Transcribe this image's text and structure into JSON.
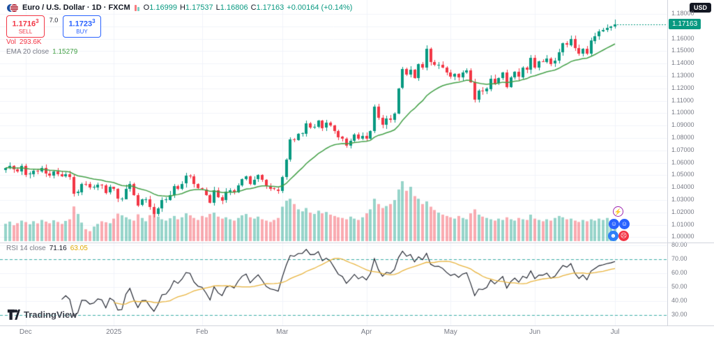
{
  "header": {
    "title": "Euro / U.S. Dollar · 1D · FXCM",
    "ohlc": {
      "o_label": "O",
      "o": "1.16999",
      "h_label": "H",
      "h": "1.17537",
      "l_label": "L",
      "l": "1.16806",
      "c_label": "C",
      "c": "1.17163",
      "change": "+0.00164 (+0.14%)"
    }
  },
  "order_widget": {
    "sell_price": "1.1716",
    "sell_sup": "3",
    "sell_label": "SELL",
    "spread": "7.0",
    "buy_price": "1.1723",
    "buy_sup": "3",
    "buy_label": "BUY"
  },
  "volume_row": {
    "label": "Vol",
    "value": "293.6K"
  },
  "ema_row": {
    "label": "EMA 20 close",
    "value": "1.15279"
  },
  "rsi_pane": {
    "label": "RSI 14 close",
    "value": "71.16",
    "ma_value": "63.05"
  },
  "price_scale": {
    "currency": "USD",
    "current": "1.17163",
    "labels": [
      "1.18000",
      "1.17000",
      "1.16000",
      "1.15000",
      "1.14000",
      "1.13000",
      "1.12000",
      "1.11000",
      "1.10000",
      "1.09000",
      "1.08000",
      "1.07000",
      "1.06000",
      "1.05000",
      "1.04000",
      "1.03000",
      "1.02000",
      "1.01000",
      "1.00000"
    ]
  },
  "rsi_scale": {
    "labels": [
      "80.00",
      "70.00",
      "60.00",
      "50.00",
      "40.00",
      "30.00"
    ]
  },
  "time_scale": {
    "ticks": [
      {
        "label": "Dec",
        "index": 5
      },
      {
        "label": "2025",
        "index": 27
      },
      {
        "label": "Feb",
        "index": 49
      },
      {
        "label": "Mar",
        "index": 69
      },
      {
        "label": "Apr",
        "index": 90
      },
      {
        "label": "May",
        "index": 111
      },
      {
        "label": "Jun",
        "index": 132
      },
      {
        "label": "Jul",
        "index": 152
      }
    ]
  },
  "logo": {
    "text": "TradingView"
  },
  "reactions": [
    {
      "glyph": "⚡",
      "bg": "#ffffff",
      "fg": "#9c27b0",
      "border": "#9c27b0"
    },
    {
      "glyph": "☺",
      "bg": "#2962ff",
      "fg": "#ffffff",
      "border": "#2962ff"
    },
    {
      "glyph": "☺",
      "bg": "#2962ff",
      "fg": "#ffffff",
      "border": "#2962ff"
    },
    {
      "glyph": "☻",
      "bg": "#2d7ff9",
      "fg": "#ffffff",
      "border": "#2d7ff9"
    },
    {
      "glyph": "☹",
      "bg": "#f23645",
      "fg": "#ffffff",
      "border": "#f23645"
    }
  ],
  "colors": {
    "up": "#089981",
    "down": "#f23645",
    "ema": "#43a047",
    "rsi_line": "#131722",
    "rsi_ma": "#e8b33c",
    "rsi_band": "#26a69a",
    "badge_bg": "#089981",
    "sell": "#f23645",
    "buy": "#2962ff",
    "grid": "#f0f3fa",
    "separator": "#d1d4dc",
    "axis_text": "#787b86"
  },
  "chart_data": {
    "type": "candlestick",
    "title": "Euro / U.S. Dollar · 1D · FXCM",
    "symbol": "EUR/USD",
    "interval": "1D",
    "exchange": "FXCM",
    "price_range": [
      1.0,
      1.18
    ],
    "rsi_range": [
      30,
      80
    ],
    "legend_position": "top-left",
    "grid": true,
    "indicators": {
      "ema_period": 20,
      "ema_last": 1.15279,
      "rsi_period": 14,
      "rsi_last": 71.16,
      "rsi_ma_last": 63.05,
      "rsi_bands": [
        70,
        30
      ]
    },
    "last_candle": {
      "open": 1.16999,
      "high": 1.17537,
      "low": 1.16806,
      "close": 1.17163
    },
    "last_volume_k": 293.6,
    "closes": [
      1.056,
      1.0575,
      1.0548,
      1.0532,
      1.0577,
      1.0505,
      1.0512,
      1.0538,
      1.053,
      1.0558,
      1.0512,
      1.0495,
      1.053,
      1.0508,
      1.0493,
      1.051,
      1.0488,
      1.0351,
      1.0365,
      1.043,
      1.0428,
      1.0399,
      1.0404,
      1.0424,
      1.0418,
      1.0358,
      1.0405,
      1.0388,
      1.0308,
      1.031,
      1.0392,
      1.043,
      1.0341,
      1.0258,
      1.0304,
      1.0305,
      1.0244,
      1.0186,
      1.023,
      1.0298,
      1.0303,
      1.0342,
      1.0413,
      1.0392,
      1.043,
      1.0494,
      1.0489,
      1.0428,
      1.0395,
      1.0387,
      1.0341,
      1.0279,
      1.038,
      1.0325,
      1.0298,
      1.0367,
      1.038,
      1.0362,
      1.042,
      1.0468,
      1.0489,
      1.0425,
      1.0465,
      1.0501,
      1.0461,
      1.0413,
      1.0393,
      1.0386,
      1.0375,
      1.0486,
      1.0625,
      1.0789,
      1.0783,
      1.0835,
      1.0837,
      1.092,
      1.0885,
      1.0888,
      1.094,
      1.088,
      1.0922,
      1.0902,
      1.0858,
      1.081,
      1.0794,
      1.074,
      1.078,
      1.0828,
      1.0795,
      1.0817,
      1.0793,
      1.0854,
      1.1052,
      1.0963,
      1.0905,
      1.0957,
      1.0948,
      1.0999,
      1.1201,
      1.1355,
      1.131,
      1.1349,
      1.1283,
      1.1395,
      1.1368,
      1.1519,
      1.141,
      1.1386,
      1.1389,
      1.1368,
      1.1329,
      1.1298,
      1.1318,
      1.1288,
      1.133,
      1.1345,
      1.1248,
      1.1108,
      1.1181,
      1.1175,
      1.1197,
      1.128,
      1.1242,
      1.1284,
      1.1328,
      1.1211,
      1.1287,
      1.1332,
      1.129,
      1.1366,
      1.1348,
      1.1446,
      1.137,
      1.1418,
      1.1417,
      1.1443,
      1.1398,
      1.1421,
      1.1491,
      1.1563,
      1.155,
      1.16,
      1.1525,
      1.1479,
      1.1521,
      1.148,
      1.1584,
      1.1621,
      1.1659,
      1.1672,
      1.169,
      1.16999,
      1.17163
    ],
    "volumes_k": [
      262,
      295,
      240,
      271,
      310,
      288,
      255,
      301,
      268,
      320,
      295,
      270,
      315,
      290,
      260,
      305,
      330,
      524,
      410,
      280,
      180,
      150,
      220,
      260,
      300,
      285,
      270,
      340,
      415,
      390,
      360,
      330,
      310,
      405,
      350,
      300,
      392,
      440,
      370,
      330,
      310,
      345,
      380,
      330,
      360,
      420,
      390,
      350,
      320,
      380,
      360,
      410,
      430,
      370,
      340,
      360,
      330,
      310,
      350,
      390,
      410,
      360,
      340,
      370,
      330,
      310,
      290,
      320,
      350,
      520,
      610,
      640,
      560,
      480,
      450,
      500,
      430,
      410,
      460,
      420,
      440,
      400,
      380,
      360,
      350,
      330,
      370,
      340,
      320,
      360,
      420,
      480,
      640,
      560,
      500,
      530,
      560,
      620,
      780,
      905,
      760,
      820,
      680,
      640,
      560,
      600,
      520,
      470,
      430,
      400,
      380,
      360,
      340,
      380,
      350,
      330,
      420,
      480,
      400,
      370,
      350,
      330,
      310,
      340,
      320,
      360,
      330,
      310,
      350,
      330,
      320,
      400,
      340,
      320,
      300,
      330,
      310,
      350,
      380,
      360,
      330,
      340,
      310,
      290,
      320,
      300,
      330,
      310,
      340,
      320,
      350,
      310,
      293.6
    ]
  }
}
